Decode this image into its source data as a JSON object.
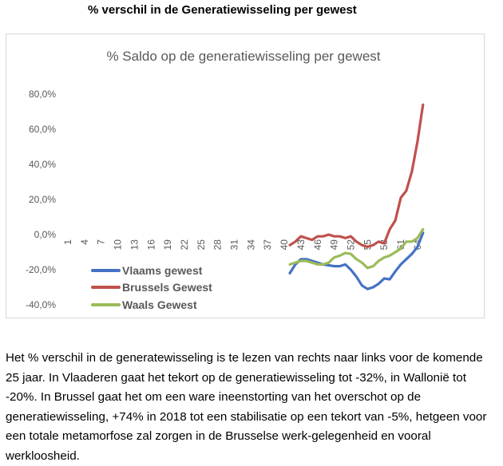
{
  "heading": "% verschil in de Generatiewisseling per gewest",
  "caption": "Het % verschil in de generatewisseling is te lezen van rechts naar links voor de komende 25 jaar. In Vlaaderen gaat het tekort op de generatiewisseling tot -32%, in Wallonië tot -20%. In Brussel gaat het om een ware ineenstorting van het overschot op de generatiewisseling, +74% in 2018 tot een stabilisatie op een tekort van -5%, hetgeen voor een totale metamorfose zal zorgen in de Brusselse werk-gelegenheid en vooral werkloosheid.",
  "chart_data": {
    "type": "line",
    "title": "% Saldo op de generatiewisseling per gewest",
    "x": [
      1,
      2,
      3,
      4,
      5,
      6,
      7,
      8,
      9,
      10,
      11,
      12,
      13,
      14,
      15,
      16,
      17,
      18,
      19,
      20,
      21,
      22,
      23,
      24,
      25,
      26,
      27,
      28,
      29,
      30,
      31,
      32,
      33,
      34,
      35,
      36,
      37,
      38,
      39,
      40,
      41,
      42,
      43,
      44,
      45,
      46,
      47,
      48,
      49,
      50,
      51,
      52,
      53,
      54,
      55,
      56,
      57,
      58,
      59,
      60,
      61,
      62,
      63,
      64,
      65
    ],
    "x_tick_labels": [
      "1",
      "4",
      "7",
      "10",
      "13",
      "16",
      "19",
      "22",
      "25",
      "28",
      "31",
      "34",
      "37",
      "40",
      "43",
      "46",
      "49",
      "52",
      "55",
      "58",
      "61",
      "64"
    ],
    "y_tick_labels": [
      "80,0%",
      "60,0%",
      "40,0%",
      "20,0%",
      "0,0%",
      "-20,0%",
      "-40,0%"
    ],
    "ylim": [
      -40,
      80
    ],
    "grid": false,
    "legend_position": "bottom-left",
    "series": [
      {
        "name": "Vlaams gewest",
        "color": "#4472C4",
        "x": [
          41,
          42,
          43,
          44,
          45,
          46,
          47,
          48,
          49,
          50,
          51,
          52,
          53,
          54,
          55,
          56,
          57,
          58,
          59,
          60,
          61,
          62,
          63,
          64,
          65
        ],
        "values": [
          -22,
          -17,
          -14,
          -14,
          -15,
          -16,
          -17,
          -17.5,
          -18,
          -18,
          -17,
          -20,
          -24,
          -29,
          -31,
          -30,
          -28,
          -25,
          -25.5,
          -21,
          -17,
          -14,
          -11,
          -7,
          1
        ]
      },
      {
        "name": "Brussels Gewest",
        "color": "#C0504D",
        "x": [
          41,
          42,
          43,
          44,
          45,
          46,
          47,
          48,
          49,
          50,
          51,
          52,
          53,
          54,
          55,
          56,
          57,
          58,
          59,
          60,
          61,
          62,
          63,
          64,
          65
        ],
        "values": [
          -6,
          -4,
          -1,
          -2,
          -3,
          -1,
          -1,
          0,
          -1,
          -1,
          -2,
          -1,
          -4,
          -6,
          -7,
          -6,
          -4,
          -5,
          3,
          8,
          21,
          25,
          36,
          53,
          74
        ]
      },
      {
        "name": "Waals Gewest",
        "color": "#9BBB59",
        "x": [
          41,
          42,
          43,
          44,
          45,
          46,
          47,
          48,
          49,
          50,
          51,
          52,
          53,
          54,
          55,
          56,
          57,
          58,
          59,
          60,
          61,
          62,
          63,
          64,
          65
        ],
        "values": [
          -17,
          -16,
          -15,
          -15,
          -16,
          -17,
          -17,
          -16,
          -13,
          -12,
          -10.5,
          -11,
          -14,
          -16,
          -19,
          -18,
          -15,
          -13,
          -12,
          -10,
          -8,
          -4,
          -4,
          -2,
          3
        ]
      }
    ]
  }
}
